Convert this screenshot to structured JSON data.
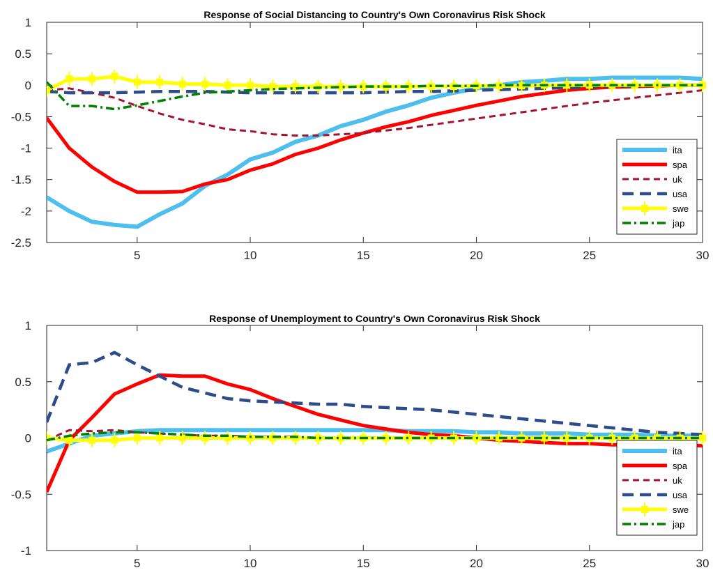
{
  "chart_data": [
    {
      "type": "line",
      "title": "Response of Social Distancing to Country's Own Coronavirus Risk Shock",
      "xlabel": "",
      "ylabel": "",
      "xlim": [
        1,
        30
      ],
      "ylim": [
        -2.5,
        1
      ],
      "x_ticks": [
        5,
        10,
        15,
        20,
        25,
        30
      ],
      "y_ticks": [
        -2.5,
        -2,
        -1.5,
        -1,
        -0.5,
        0,
        0.5,
        1
      ],
      "x_tick_labels": [
        "5",
        "10",
        "15",
        "20",
        "25",
        "30"
      ],
      "y_tick_labels": [
        "-2.5",
        "-2",
        "-1.5",
        "-1",
        "-0.5",
        "0",
        "0.5",
        "1"
      ],
      "legend_position": "bottom-right",
      "grid": false,
      "x": [
        1,
        2,
        3,
        4,
        5,
        6,
        7,
        8,
        9,
        10,
        11,
        12,
        13,
        14,
        15,
        16,
        17,
        18,
        19,
        20,
        21,
        22,
        23,
        24,
        25,
        26,
        27,
        28,
        29,
        30
      ],
      "series": [
        {
          "name": "ita",
          "color": "#4dbeee",
          "style": "solid-thick",
          "values": [
            -1.78,
            -2.0,
            -2.17,
            -2.22,
            -2.25,
            -2.05,
            -1.88,
            -1.6,
            -1.42,
            -1.18,
            -1.07,
            -0.9,
            -0.8,
            -0.65,
            -0.55,
            -0.42,
            -0.32,
            -0.2,
            -0.12,
            -0.05,
            0.0,
            0.05,
            0.07,
            0.1,
            0.1,
            0.12,
            0.12,
            0.12,
            0.12,
            0.1
          ]
        },
        {
          "name": "spa",
          "color": "#ff0000",
          "style": "solid",
          "values": [
            -0.52,
            -1.0,
            -1.3,
            -1.53,
            -1.7,
            -1.7,
            -1.69,
            -1.57,
            -1.5,
            -1.35,
            -1.25,
            -1.1,
            -1.0,
            -0.87,
            -0.76,
            -0.66,
            -0.58,
            -0.48,
            -0.4,
            -0.32,
            -0.25,
            -0.18,
            -0.13,
            -0.08,
            -0.05,
            -0.03,
            -0.02,
            -0.01,
            0.0,
            0.0
          ]
        },
        {
          "name": "uk",
          "color": "#a2142f",
          "style": "dashed",
          "values": [
            -0.08,
            -0.05,
            -0.12,
            -0.2,
            -0.33,
            -0.45,
            -0.55,
            -0.62,
            -0.7,
            -0.73,
            -0.78,
            -0.8,
            -0.8,
            -0.78,
            -0.76,
            -0.72,
            -0.68,
            -0.63,
            -0.58,
            -0.53,
            -0.48,
            -0.43,
            -0.38,
            -0.33,
            -0.28,
            -0.24,
            -0.2,
            -0.16,
            -0.12,
            -0.08
          ]
        },
        {
          "name": "usa",
          "color": "#2e4c8a",
          "style": "dashed-thick",
          "values": [
            -0.1,
            -0.12,
            -0.12,
            -0.12,
            -0.11,
            -0.1,
            -0.1,
            -0.1,
            -0.11,
            -0.12,
            -0.12,
            -0.12,
            -0.12,
            -0.12,
            -0.12,
            -0.11,
            -0.1,
            -0.1,
            -0.09,
            -0.08,
            -0.07,
            -0.06,
            -0.05,
            -0.04,
            -0.03,
            -0.02,
            -0.01,
            0.0,
            0.0,
            0.0
          ]
        },
        {
          "name": "swe",
          "color": "#ffff00",
          "style": "solid-marker",
          "values": [
            -0.08,
            0.1,
            0.1,
            0.14,
            0.05,
            0.05,
            0.02,
            0.02,
            0.0,
            0.0,
            -0.02,
            -0.02,
            -0.02,
            -0.02,
            -0.02,
            -0.02,
            -0.02,
            -0.02,
            -0.02,
            -0.01,
            -0.01,
            -0.01,
            0.0,
            0.0,
            0.0,
            0.0,
            0.0,
            0.0,
            0.0,
            0.0
          ]
        },
        {
          "name": "jap",
          "color": "#008000",
          "style": "dashdot",
          "values": [
            0.05,
            -0.33,
            -0.33,
            -0.38,
            -0.32,
            -0.25,
            -0.18,
            -0.12,
            -0.1,
            -0.08,
            -0.06,
            -0.05,
            -0.04,
            -0.03,
            -0.02,
            -0.02,
            -0.02,
            -0.01,
            -0.01,
            -0.01,
            0.0,
            0.0,
            0.0,
            0.0,
            0.0,
            0.0,
            0.0,
            0.0,
            0.0,
            0.0
          ]
        }
      ]
    },
    {
      "type": "line",
      "title": "Response of Unemployment to Country's Own Coronavirus Risk Shock",
      "xlabel": "",
      "ylabel": "",
      "xlim": [
        1,
        30
      ],
      "ylim": [
        -1,
        1
      ],
      "x_ticks": [
        5,
        10,
        15,
        20,
        25,
        30
      ],
      "y_ticks": [
        -1,
        -0.5,
        0,
        0.5,
        1
      ],
      "x_tick_labels": [
        "5",
        "10",
        "15",
        "20",
        "25",
        "30"
      ],
      "y_tick_labels": [
        "-1",
        "-0.5",
        "0",
        "0.5",
        "1"
      ],
      "legend_position": "bottom-right",
      "grid": false,
      "x": [
        1,
        2,
        3,
        4,
        5,
        6,
        7,
        8,
        9,
        10,
        11,
        12,
        13,
        14,
        15,
        16,
        17,
        18,
        19,
        20,
        21,
        22,
        23,
        24,
        25,
        26,
        27,
        28,
        29,
        30
      ],
      "series": [
        {
          "name": "ita",
          "color": "#4dbeee",
          "style": "solid-thick",
          "values": [
            -0.12,
            -0.05,
            0.02,
            0.04,
            0.06,
            0.07,
            0.07,
            0.07,
            0.07,
            0.07,
            0.07,
            0.07,
            0.07,
            0.07,
            0.07,
            0.07,
            0.06,
            0.06,
            0.06,
            0.05,
            0.05,
            0.04,
            0.04,
            0.04,
            0.03,
            0.03,
            0.03,
            0.02,
            0.02,
            0.02
          ]
        },
        {
          "name": "spa",
          "color": "#ff0000",
          "style": "solid",
          "values": [
            -0.48,
            -0.02,
            0.18,
            0.39,
            0.48,
            0.56,
            0.55,
            0.55,
            0.48,
            0.43,
            0.35,
            0.28,
            0.21,
            0.16,
            0.11,
            0.08,
            0.05,
            0.03,
            0.02,
            0.0,
            -0.02,
            -0.03,
            -0.04,
            -0.05,
            -0.05,
            -0.06,
            -0.06,
            -0.06,
            -0.06,
            -0.07
          ]
        },
        {
          "name": "uk",
          "color": "#a2142f",
          "style": "dashed",
          "values": [
            -0.02,
            0.07,
            0.06,
            0.07,
            0.05,
            0.04,
            0.03,
            0.02,
            0.02,
            0.01,
            0.01,
            0.01,
            0.0,
            0.0,
            0.0,
            0.0,
            0.0,
            0.0,
            0.0,
            0.0,
            0.0,
            0.0,
            0.0,
            0.0,
            0.0,
            0.0,
            0.0,
            0.0,
            0.0,
            0.0
          ]
        },
        {
          "name": "usa",
          "color": "#2e4c8a",
          "style": "dashed-thick",
          "values": [
            0.14,
            0.65,
            0.67,
            0.76,
            0.65,
            0.55,
            0.45,
            0.4,
            0.35,
            0.33,
            0.32,
            0.31,
            0.3,
            0.3,
            0.28,
            0.27,
            0.26,
            0.25,
            0.23,
            0.21,
            0.19,
            0.17,
            0.15,
            0.13,
            0.11,
            0.09,
            0.07,
            0.05,
            0.04,
            0.03
          ]
        },
        {
          "name": "swe",
          "color": "#ffff00",
          "style": "solid-marker",
          "values": [
            0.0,
            -0.02,
            -0.02,
            -0.02,
            0.0,
            0.0,
            0.0,
            0.0,
            0.0,
            0.0,
            0.0,
            0.0,
            0.0,
            0.0,
            0.0,
            0.0,
            0.0,
            0.0,
            0.0,
            0.0,
            0.0,
            0.0,
            0.0,
            0.0,
            0.0,
            0.0,
            0.0,
            0.0,
            0.0,
            0.0
          ]
        },
        {
          "name": "jap",
          "color": "#008000",
          "style": "dashdot",
          "values": [
            -0.02,
            0.02,
            0.04,
            0.05,
            0.05,
            0.04,
            0.03,
            0.02,
            0.02,
            0.01,
            0.01,
            0.01,
            0.0,
            0.0,
            0.0,
            0.0,
            0.0,
            0.0,
            0.0,
            0.0,
            0.0,
            0.0,
            0.0,
            0.0,
            0.0,
            0.0,
            0.0,
            0.0,
            0.0,
            0.0
          ]
        }
      ]
    }
  ]
}
